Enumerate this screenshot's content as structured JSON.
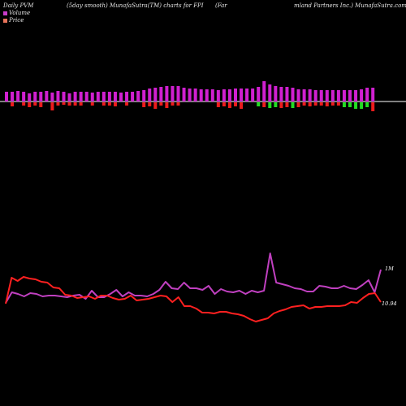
{
  "header": {
    "left": "Daily PVM",
    "middle": "(5day smooth) MunafaSutra(TM) charts for FPI",
    "right_a": "(Far",
    "right_b": "mland Partners Inc.) MunafaSutra.com"
  },
  "legend": {
    "volume_label": "Volume",
    "price_label": "Price",
    "volume_color": "#c93cc9",
    "price_color": "#e8735a"
  },
  "colors": {
    "up": "#d020d0",
    "down": "#ee1c1c",
    "down_green": "#22dd22",
    "price_line": "#ff2020",
    "volume_line": "#c040c0",
    "baseline": "#ffffff"
  },
  "chart_data": {
    "type": "line",
    "title": "",
    "xlabel": "",
    "ylabel": "",
    "grid": false,
    "bars": {
      "up": [
        12,
        12,
        13,
        12,
        10,
        12,
        12,
        13,
        11,
        13,
        12,
        10,
        12,
        12,
        12,
        11,
        12,
        12,
        12,
        12,
        11,
        12,
        12,
        13,
        14,
        16,
        17,
        18,
        19,
        19,
        19,
        17,
        16,
        16,
        15,
        15,
        15,
        14,
        15,
        15,
        16,
        16,
        16,
        16,
        18,
        25,
        21,
        19,
        18,
        18,
        17,
        15,
        15,
        15,
        14,
        14,
        14,
        14,
        14,
        14,
        14,
        14,
        15,
        17,
        17
      ],
      "down": [
        0,
        5,
        0,
        4,
        6,
        4,
        6,
        0,
        10,
        4,
        3,
        4,
        4,
        4,
        0,
        4,
        0,
        4,
        4,
        5,
        0,
        4,
        0,
        0,
        6,
        5,
        8,
        4,
        7,
        4,
        4,
        0,
        0,
        0,
        0,
        0,
        0,
        6,
        5,
        7,
        5,
        8,
        0,
        0,
        5,
        6,
        7,
        6,
        7,
        6,
        7,
        6,
        4,
        5,
        4,
        4,
        5,
        4,
        4,
        6,
        6,
        8,
        8,
        6,
        11
      ],
      "down_green": [
        false,
        false,
        false,
        false,
        false,
        false,
        false,
        false,
        false,
        false,
        false,
        false,
        false,
        false,
        false,
        false,
        false,
        false,
        false,
        false,
        false,
        false,
        false,
        false,
        false,
        false,
        false,
        false,
        false,
        false,
        false,
        false,
        false,
        false,
        false,
        false,
        false,
        false,
        false,
        false,
        false,
        false,
        false,
        false,
        true,
        false,
        true,
        true,
        false,
        false,
        true,
        false,
        false,
        false,
        false,
        false,
        false,
        false,
        false,
        true,
        true,
        true,
        true,
        true,
        false
      ]
    },
    "series": [
      {
        "name": "Price",
        "values": [
          374,
          342,
          346,
          341,
          343,
          344,
          347,
          348,
          354,
          355,
          363,
          364,
          367,
          366,
          365,
          368,
          364,
          364,
          367,
          369,
          368,
          364,
          370,
          369,
          368,
          366,
          364,
          365,
          372,
          366,
          377,
          377,
          380,
          385,
          385,
          386,
          384,
          384,
          386,
          387,
          389,
          393,
          396,
          394,
          392,
          386,
          383,
          381,
          378,
          377,
          376,
          380,
          378,
          378,
          377,
          377,
          377,
          376,
          372,
          373,
          367,
          362,
          361,
          372
        ]
      },
      {
        "name": "Volume",
        "values": [
          373,
          360,
          362,
          365,
          361,
          362,
          365,
          364,
          364,
          365,
          366,
          364,
          363,
          368,
          358,
          366,
          366,
          362,
          357,
          365,
          360,
          364,
          364,
          365,
          362,
          357,
          347,
          355,
          356,
          348,
          355,
          355,
          357,
          352,
          362,
          356,
          359,
          360,
          358,
          362,
          358,
          360,
          358,
          312,
          348,
          350,
          352,
          355,
          356,
          359,
          359,
          352,
          353,
          355,
          355,
          352,
          355,
          356,
          351,
          345,
          360,
          332
        ],
        "label": "1M"
      }
    ],
    "price_label": "10.94"
  }
}
